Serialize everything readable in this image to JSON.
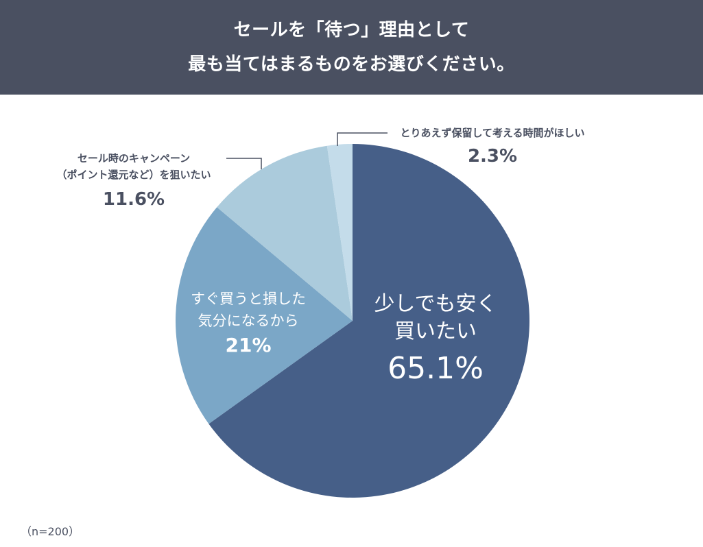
{
  "header": {
    "title_line1": "セールを「待つ」理由として",
    "title_line2": "最も当てはまるものをお選びください。"
  },
  "sample_note": "（n=200）",
  "colors": {
    "header_bg": "#4a5061",
    "slice1": "#465f88",
    "slice2": "#7ba7c7",
    "slice3": "#abcbdc",
    "slice4": "#c4dcea",
    "label_text": "#4a5061"
  },
  "slices": [
    {
      "label_line1": "少しでも安く",
      "label_line2": "買いたい",
      "value_label": "65.1%"
    },
    {
      "label_line1": "すぐ買うと損した",
      "label_line2": "気分になるから",
      "value_label": "21%"
    },
    {
      "label_line1": "セール時のキャンペーン",
      "label_line2": "（ポイント還元など）を狙いたい",
      "value_label": "11.6%"
    },
    {
      "label_line1": "とりあえず保留して考える時間がほしい",
      "value_label": "2.3%"
    }
  ],
  "chart_data": {
    "type": "pie",
    "title": "セールを「待つ」理由として最も当てはまるものをお選びください。",
    "categories": [
      "少しでも安く買いたい",
      "すぐ買うと損した気分になるから",
      "セール時のキャンペーン（ポイント還元など）を狙いたい",
      "とりあえず保留して考える時間がほしい"
    ],
    "values": [
      65.1,
      21,
      11.6,
      2.3
    ],
    "unit": "%",
    "sample_size": "n=200",
    "start_angle": "12 o'clock, clockwise",
    "legend": "none (direct labels)"
  }
}
